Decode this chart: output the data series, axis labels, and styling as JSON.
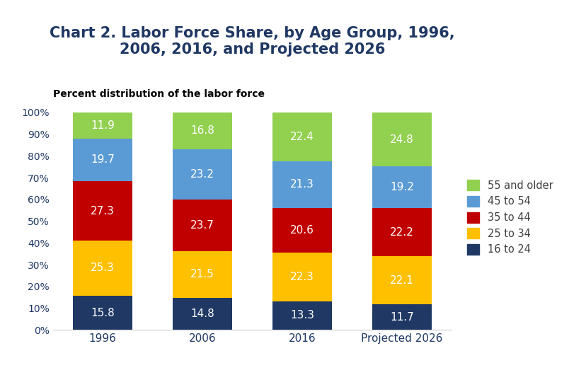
{
  "title": "Chart 2. Labor Force Share, by Age Group, 1996,\n2006, 2016, and Projected 2026",
  "subtitle": "Percent distribution of the labor force",
  "categories": [
    "1996",
    "2006",
    "2016",
    "Projected 2026"
  ],
  "groups": [
    "16 to 24",
    "25 to 34",
    "35 to 44",
    "45 to 54",
    "55 and older"
  ],
  "colors": [
    "#1f3864",
    "#ffc000",
    "#c00000",
    "#5b9bd5",
    "#92d050"
  ],
  "values": {
    "16 to 24": [
      15.8,
      14.8,
      13.3,
      11.7
    ],
    "25 to 34": [
      25.3,
      21.5,
      22.3,
      22.1
    ],
    "35 to 44": [
      27.3,
      23.7,
      20.6,
      22.2
    ],
    "45 to 54": [
      19.7,
      23.2,
      21.3,
      19.2
    ],
    "55 and older": [
      11.9,
      16.8,
      22.4,
      24.8
    ]
  },
  "ylim": [
    0,
    100
  ],
  "yticks": [
    0,
    10,
    20,
    30,
    40,
    50,
    60,
    70,
    80,
    90,
    100
  ],
  "ytick_labels": [
    "0%",
    "10%",
    "20%",
    "30%",
    "40%",
    "50%",
    "60%",
    "70%",
    "80%",
    "90%",
    "100%"
  ],
  "title_fontsize": 15,
  "subtitle_fontsize": 10,
  "tick_fontsize": 10,
  "label_fontsize": 11,
  "legend_fontsize": 10.5,
  "bar_width": 0.6,
  "background_color": "#ffffff",
  "title_color": "#1f3864",
  "subtitle_color": "#000000",
  "text_color": "#ffffff",
  "axis_color": "#1f3864",
  "legend_text_color": "#404040"
}
